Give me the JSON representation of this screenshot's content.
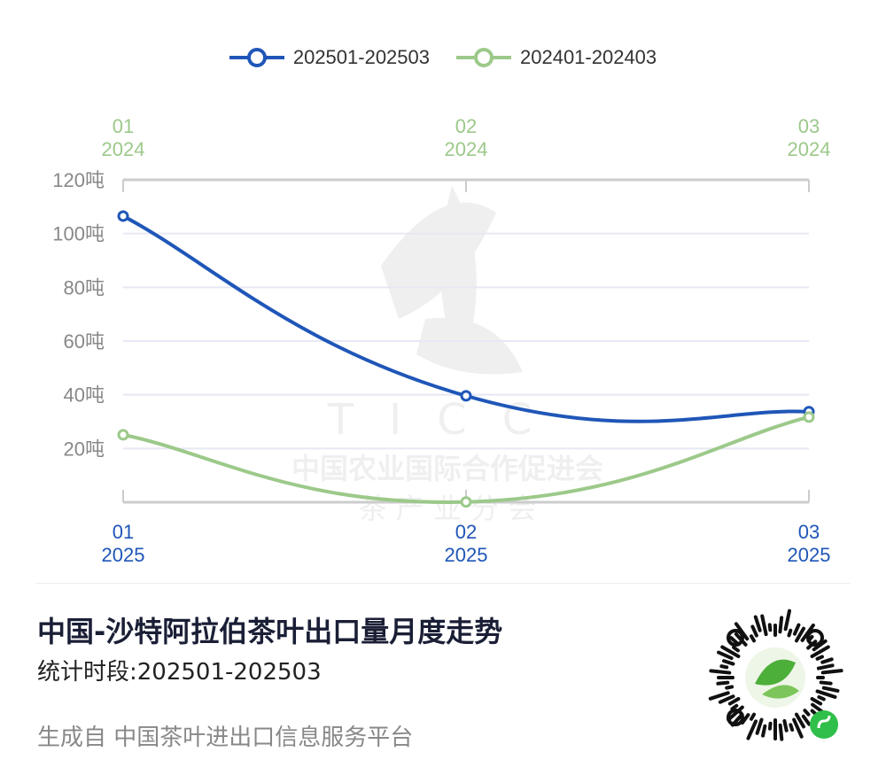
{
  "chart_data": {
    "type": "line",
    "title": "中国-沙特阿拉伯茶叶出口量月度走势",
    "subtitle": "统计时段:202501-202503",
    "x_top_labels": [
      [
        "01",
        "2024"
      ],
      [
        "02",
        "2024"
      ],
      [
        "03",
        "2024"
      ]
    ],
    "x_bottom_labels": [
      [
        "01",
        "2025"
      ],
      [
        "02",
        "2025"
      ],
      [
        "03",
        "2025"
      ]
    ],
    "y_ticks": [
      "20吨",
      "40吨",
      "60吨",
      "80吨",
      "100吨",
      "120吨"
    ],
    "ylim": [
      0,
      120
    ],
    "grid": true,
    "legend_position": "top",
    "series": [
      {
        "name": "202501-202503",
        "color": "#1f56b8",
        "values": [
          106.5,
          39.6,
          33.7
        ]
      },
      {
        "name": "202401-202403",
        "color": "#9cc98a",
        "values": [
          25.1,
          0.1,
          31.7
        ]
      }
    ]
  },
  "watermark": {
    "logo": "TICC",
    "line1": "中国农业国际合作促进会",
    "line2": "茶 产 业 分 会"
  },
  "footer": {
    "source": "生成自 中国茶叶进出口信息服务平台"
  },
  "qr_icon": "mini-program-qr-code"
}
